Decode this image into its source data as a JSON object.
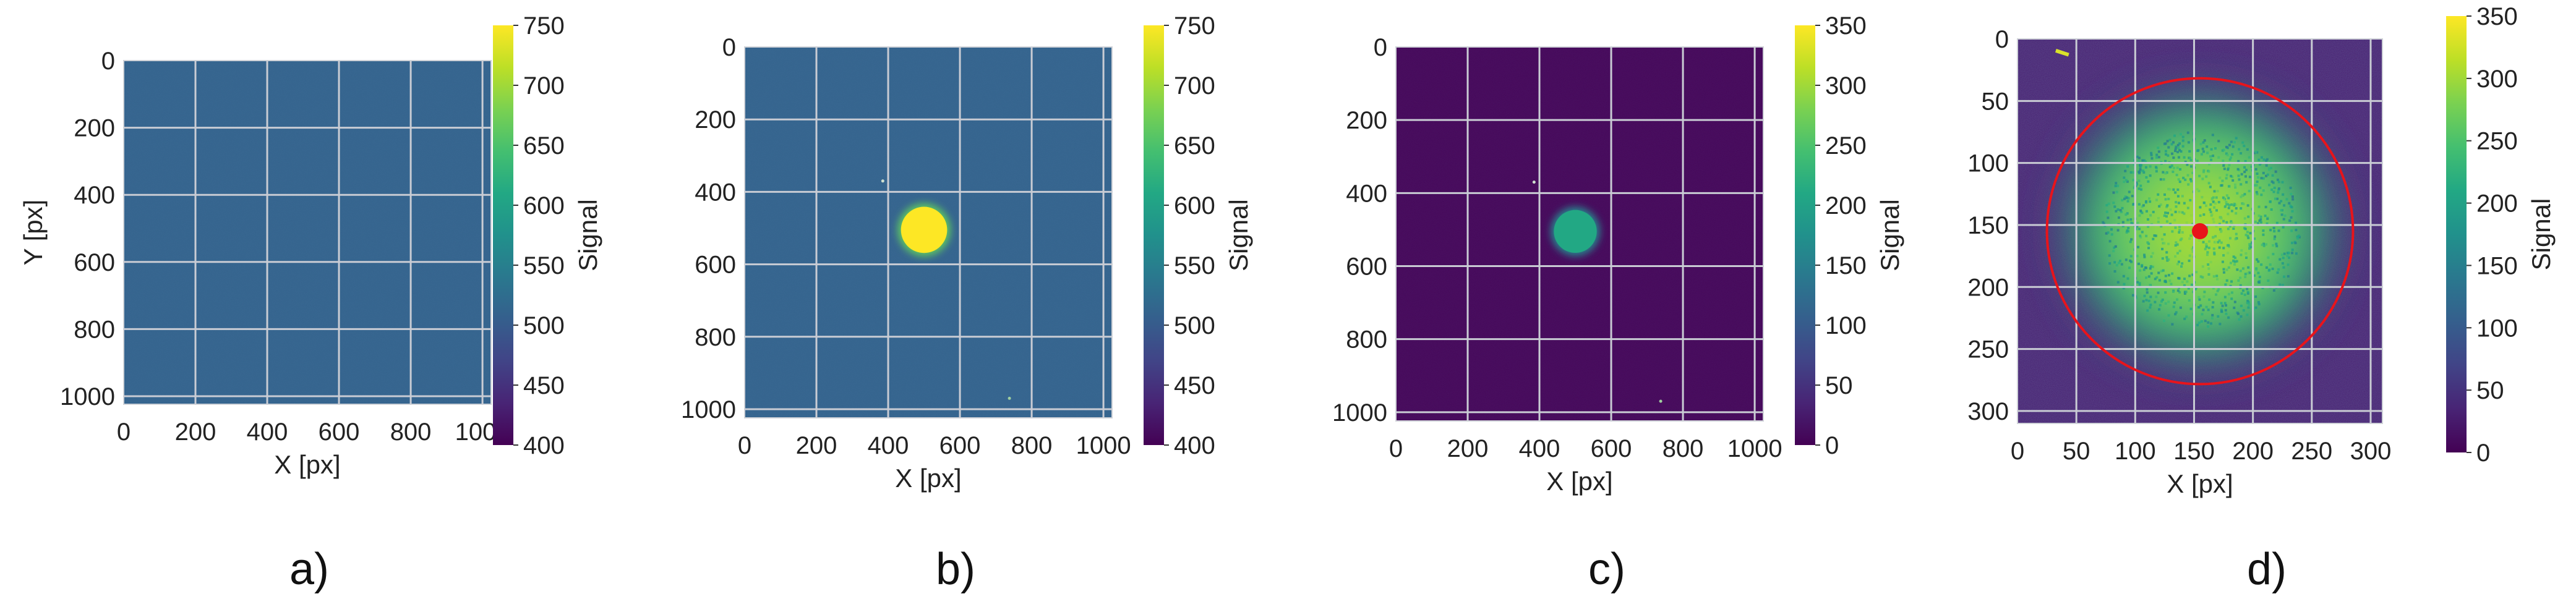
{
  "chart_data": [
    {
      "type": "heatmap",
      "panel_label": "a)",
      "xlabel": "X [px]",
      "ylabel": "Y [px]",
      "colorbar_label": "Signal",
      "xlim": [
        0,
        1024
      ],
      "ylim": [
        1024,
        0
      ],
      "xticks": [
        0,
        200,
        400,
        600,
        800,
        1000
      ],
      "yticks": [
        0,
        200,
        400,
        600,
        800,
        1000
      ],
      "clim": [
        400,
        750
      ],
      "cticks": [
        400,
        450,
        500,
        550,
        600,
        650,
        700,
        750
      ],
      "background": 510,
      "grid": true,
      "colormap": "viridis"
    },
    {
      "type": "heatmap",
      "panel_label": "b)",
      "xlabel": "X [px]",
      "ylabel": "",
      "colorbar_label": "Signal",
      "xlim": [
        0,
        1024
      ],
      "ylim": [
        1024,
        0
      ],
      "xticks": [
        0,
        200,
        400,
        600,
        800,
        1000
      ],
      "yticks": [
        0,
        200,
        400,
        600,
        800,
        1000
      ],
      "clim": [
        400,
        750
      ],
      "cticks": [
        400,
        450,
        500,
        550,
        600,
        650,
        700,
        750
      ],
      "background": 510,
      "spot": {
        "cx": 500,
        "cy": 505,
        "r": 70,
        "value": 750
      },
      "grid": true,
      "colormap": "viridis"
    },
    {
      "type": "heatmap",
      "panel_label": "c)",
      "xlabel": "X [px]",
      "ylabel": "",
      "colorbar_label": "Signal",
      "xlim": [
        0,
        1024
      ],
      "ylim": [
        1024,
        0
      ],
      "xticks": [
        0,
        200,
        400,
        600,
        800,
        1000
      ],
      "yticks": [
        0,
        200,
        400,
        600,
        800,
        1000
      ],
      "clim": [
        0,
        350
      ],
      "cticks": [
        0,
        50,
        100,
        150,
        200,
        250,
        300,
        350
      ],
      "background": 5,
      "spot": {
        "cx": 500,
        "cy": 505,
        "r": 65,
        "value": 210
      },
      "grid": true,
      "colormap": "viridis"
    },
    {
      "type": "heatmap",
      "panel_label": "d)",
      "xlabel": "X [px]",
      "ylabel": "",
      "colorbar_label": "Signal",
      "xlim": [
        0,
        310
      ],
      "ylim": [
        310,
        0
      ],
      "xticks": [
        0,
        50,
        100,
        150,
        200,
        250,
        300
      ],
      "yticks": [
        0,
        50,
        100,
        150,
        200,
        250,
        300
      ],
      "clim": [
        0,
        350
      ],
      "cticks": [
        0,
        50,
        100,
        150,
        200,
        250,
        300,
        350
      ],
      "background": 30,
      "spot": {
        "cx": 155,
        "cy": 153,
        "r": 80,
        "value": 270
      },
      "circle": {
        "cx": 155,
        "cy": 155,
        "r": 130,
        "color": "#e8141b"
      },
      "center_point": {
        "x": 155,
        "y": 155,
        "color": "#e8141b"
      },
      "grid": true,
      "colormap": "viridis"
    }
  ]
}
